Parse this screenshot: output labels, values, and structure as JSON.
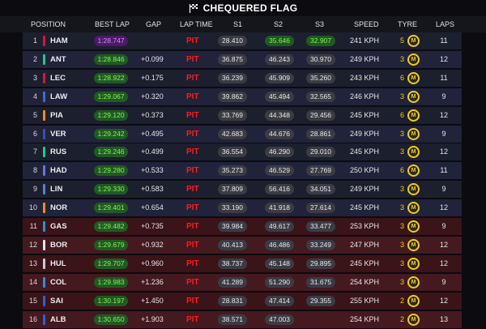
{
  "banner": {
    "title": "CHEQUERED FLAG",
    "icon": "chequered-flag-icon"
  },
  "columns": [
    "POSITION",
    "BEST LAP",
    "GAP",
    "LAP TIME",
    "S1",
    "S2",
    "S3",
    "SPEED",
    "TYRE",
    "LAPS"
  ],
  "colors": {
    "pit": "#ff1c1c",
    "personal_best": "#8cf05a",
    "overall_best": "#d98af5",
    "tyre_medium": "#f2cc1a"
  },
  "rows": [
    {
      "pos": "1",
      "team_color": "#d9163a",
      "driver": "HAM",
      "best_lap": "1:28.747",
      "best_lap_style": "purple",
      "gap": "",
      "lap_time": "PIT",
      "s1": "28.410",
      "s1_style": "gray",
      "s2": "35.646",
      "s2_style": "green",
      "s3": "32.907",
      "s3_style": "green",
      "speed": "241 KPH",
      "tyre_age": "5",
      "tyre_age_color": "#f2cc1a",
      "tyre": "M",
      "laps": "11"
    },
    {
      "pos": "2",
      "team_color": "#1ec98a",
      "driver": "ANT",
      "best_lap": "1:28.846",
      "best_lap_style": "green",
      "gap": "+0.099",
      "lap_time": "PIT",
      "s1": "36.875",
      "s1_style": "gray",
      "s2": "46.243",
      "s2_style": "gray",
      "s3": "30.970",
      "s3_style": "gray",
      "speed": "249 KPH",
      "tyre_age": "3",
      "tyre_age_color": "#f2cc1a",
      "tyre": "M",
      "laps": "12"
    },
    {
      "pos": "3",
      "team_color": "#d9163a",
      "driver": "LEC",
      "best_lap": "1:28.922",
      "best_lap_style": "green",
      "gap": "+0.175",
      "lap_time": "PIT",
      "s1": "36.239",
      "s1_style": "gray",
      "s2": "45.909",
      "s2_style": "gray",
      "s3": "35.260",
      "s3_style": "gray",
      "speed": "243 KPH",
      "tyre_age": "6",
      "tyre_age_color": "#f2cc1a",
      "tyre": "M",
      "laps": "11"
    },
    {
      "pos": "4",
      "team_color": "#3b6bd6",
      "driver": "LAW",
      "best_lap": "1:29.067",
      "best_lap_style": "green",
      "gap": "+0.320",
      "lap_time": "PIT",
      "s1": "39.862",
      "s1_style": "gray",
      "s2": "45.494",
      "s2_style": "gray",
      "s3": "32.565",
      "s3_style": "gray",
      "speed": "246 KPH",
      "tyre_age": "3",
      "tyre_age_color": "#f2cc1a",
      "tyre": "M",
      "laps": "9"
    },
    {
      "pos": "5",
      "team_color": "#f28a1e",
      "driver": "PIA",
      "best_lap": "1:29.120",
      "best_lap_style": "green",
      "gap": "+0.373",
      "lap_time": "PIT",
      "s1": "33.769",
      "s1_style": "gray",
      "s2": "44.348",
      "s2_style": "gray",
      "s3": "29.456",
      "s3_style": "gray",
      "speed": "245 KPH",
      "tyre_age": "6",
      "tyre_age_color": "#f2cc1a",
      "tyre": "M",
      "laps": "12"
    },
    {
      "pos": "6",
      "team_color": "#3b4fa8",
      "driver": "VER",
      "best_lap": "1:29.242",
      "best_lap_style": "green",
      "gap": "+0.495",
      "lap_time": "PIT",
      "s1": "42.683",
      "s1_style": "gray",
      "s2": "44.676",
      "s2_style": "gray",
      "s3": "28.861",
      "s3_style": "gray",
      "speed": "249 KPH",
      "tyre_age": "3",
      "tyre_age_color": "#f2cc1a",
      "tyre": "M",
      "laps": "9"
    },
    {
      "pos": "7",
      "team_color": "#1ec98a",
      "driver": "RUS",
      "best_lap": "1:29.246",
      "best_lap_style": "green",
      "gap": "+0.499",
      "lap_time": "PIT",
      "s1": "36.554",
      "s1_style": "gray",
      "s2": "46.290",
      "s2_style": "gray",
      "s3": "29.010",
      "s3_style": "gray",
      "speed": "245 KPH",
      "tyre_age": "3",
      "tyre_age_color": "#f2cc1a",
      "tyre": "M",
      "laps": "12"
    },
    {
      "pos": "8",
      "team_color": "#5a7fd0",
      "driver": "HAD",
      "best_lap": "1:29.280",
      "best_lap_style": "green",
      "gap": "+0.533",
      "lap_time": "PIT",
      "s1": "35.273",
      "s1_style": "gray",
      "s2": "46.529",
      "s2_style": "gray",
      "s3": "27.769",
      "s3_style": "gray",
      "speed": "250 KPH",
      "tyre_age": "6",
      "tyre_age_color": "#f2cc1a",
      "tyre": "M",
      "laps": "11"
    },
    {
      "pos": "9",
      "team_color": "#5a7fd0",
      "driver": "LIN",
      "best_lap": "1:29.330",
      "best_lap_style": "green",
      "gap": "+0.583",
      "lap_time": "PIT",
      "s1": "37.809",
      "s1_style": "gray",
      "s2": "56.416",
      "s2_style": "gray",
      "s3": "34.051",
      "s3_style": "gray",
      "speed": "249 KPH",
      "tyre_age": "3",
      "tyre_age_color": "#f2cc1a",
      "tyre": "M",
      "laps": "9"
    },
    {
      "pos": "10",
      "team_color": "#f28a1e",
      "driver": "NOR",
      "best_lap": "1:29.401",
      "best_lap_style": "green",
      "gap": "+0.654",
      "lap_time": "PIT",
      "s1": "33.190",
      "s1_style": "gray",
      "s2": "41.918",
      "s2_style": "gray",
      "s3": "27.614",
      "s3_style": "gray",
      "speed": "245 KPH",
      "tyre_age": "3",
      "tyre_age_color": "#f2cc1a",
      "tyre": "M",
      "laps": "12"
    },
    {
      "pos": "11",
      "team_color": "#2a8fe0",
      "driver": "GAS",
      "best_lap": "1:29.482",
      "best_lap_style": "green",
      "gap": "+0.735",
      "lap_time": "PIT",
      "s1": "39.984",
      "s1_style": "gray",
      "s2": "49.617",
      "s2_style": "gray",
      "s3": "33.477",
      "s3_style": "gray",
      "speed": "253 KPH",
      "tyre_age": "3",
      "tyre_age_color": "#f2cc1a",
      "tyre": "M",
      "laps": "9"
    },
    {
      "pos": "12",
      "team_color": "#dfe3ea",
      "driver": "BOR",
      "best_lap": "1:29.679",
      "best_lap_style": "green",
      "gap": "+0.932",
      "lap_time": "PIT",
      "s1": "40.413",
      "s1_style": "gray",
      "s2": "46.486",
      "s2_style": "gray",
      "s3": "33.249",
      "s3_style": "gray",
      "speed": "247 KPH",
      "tyre_age": "3",
      "tyre_age_color": "#f2cc1a",
      "tyre": "M",
      "laps": "12"
    },
    {
      "pos": "13",
      "team_color": "#c8ccd4",
      "driver": "HUL",
      "best_lap": "1:29.707",
      "best_lap_style": "green",
      "gap": "+0.960",
      "lap_time": "PIT",
      "s1": "38.737",
      "s1_style": "gray",
      "s2": "45.148",
      "s2_style": "gray",
      "s3": "29.895",
      "s3_style": "gray",
      "speed": "245 KPH",
      "tyre_age": "3",
      "tyre_age_color": "#f2cc1a",
      "tyre": "M",
      "laps": "12"
    },
    {
      "pos": "14",
      "team_color": "#2a8fe0",
      "driver": "COL",
      "best_lap": "1:29.983",
      "best_lap_style": "green",
      "gap": "+1.236",
      "lap_time": "PIT",
      "s1": "41.289",
      "s1_style": "gray",
      "s2": "51.290",
      "s2_style": "gray",
      "s3": "31.675",
      "s3_style": "gray",
      "speed": "254 KPH",
      "tyre_age": "3",
      "tyre_age_color": "#f2cc1a",
      "tyre": "M",
      "laps": "9"
    },
    {
      "pos": "15",
      "team_color": "#2f5fd8",
      "driver": "SAI",
      "best_lap": "1:30.197",
      "best_lap_style": "green",
      "gap": "+1.450",
      "lap_time": "PIT",
      "s1": "28.831",
      "s1_style": "gray",
      "s2": "47.414",
      "s2_style": "gray",
      "s3": "29.355",
      "s3_style": "gray",
      "speed": "255 KPH",
      "tyre_age": "2",
      "tyre_age_color": "#f2cc1a",
      "tyre": "M",
      "laps": "12"
    },
    {
      "pos": "16",
      "team_color": "#2f5fd8",
      "driver": "ALB",
      "best_lap": "1:30.650",
      "best_lap_style": "green",
      "gap": "+1.903",
      "lap_time": "PIT",
      "s1": "38.571",
      "s1_style": "gray",
      "s2": "47.003",
      "s2_style": "gray",
      "s3": "",
      "s3_style": "gray",
      "speed": "254 KPH",
      "tyre_age": "2",
      "tyre_age_color": "#f2cc1a",
      "tyre": "M",
      "laps": "13"
    }
  ]
}
